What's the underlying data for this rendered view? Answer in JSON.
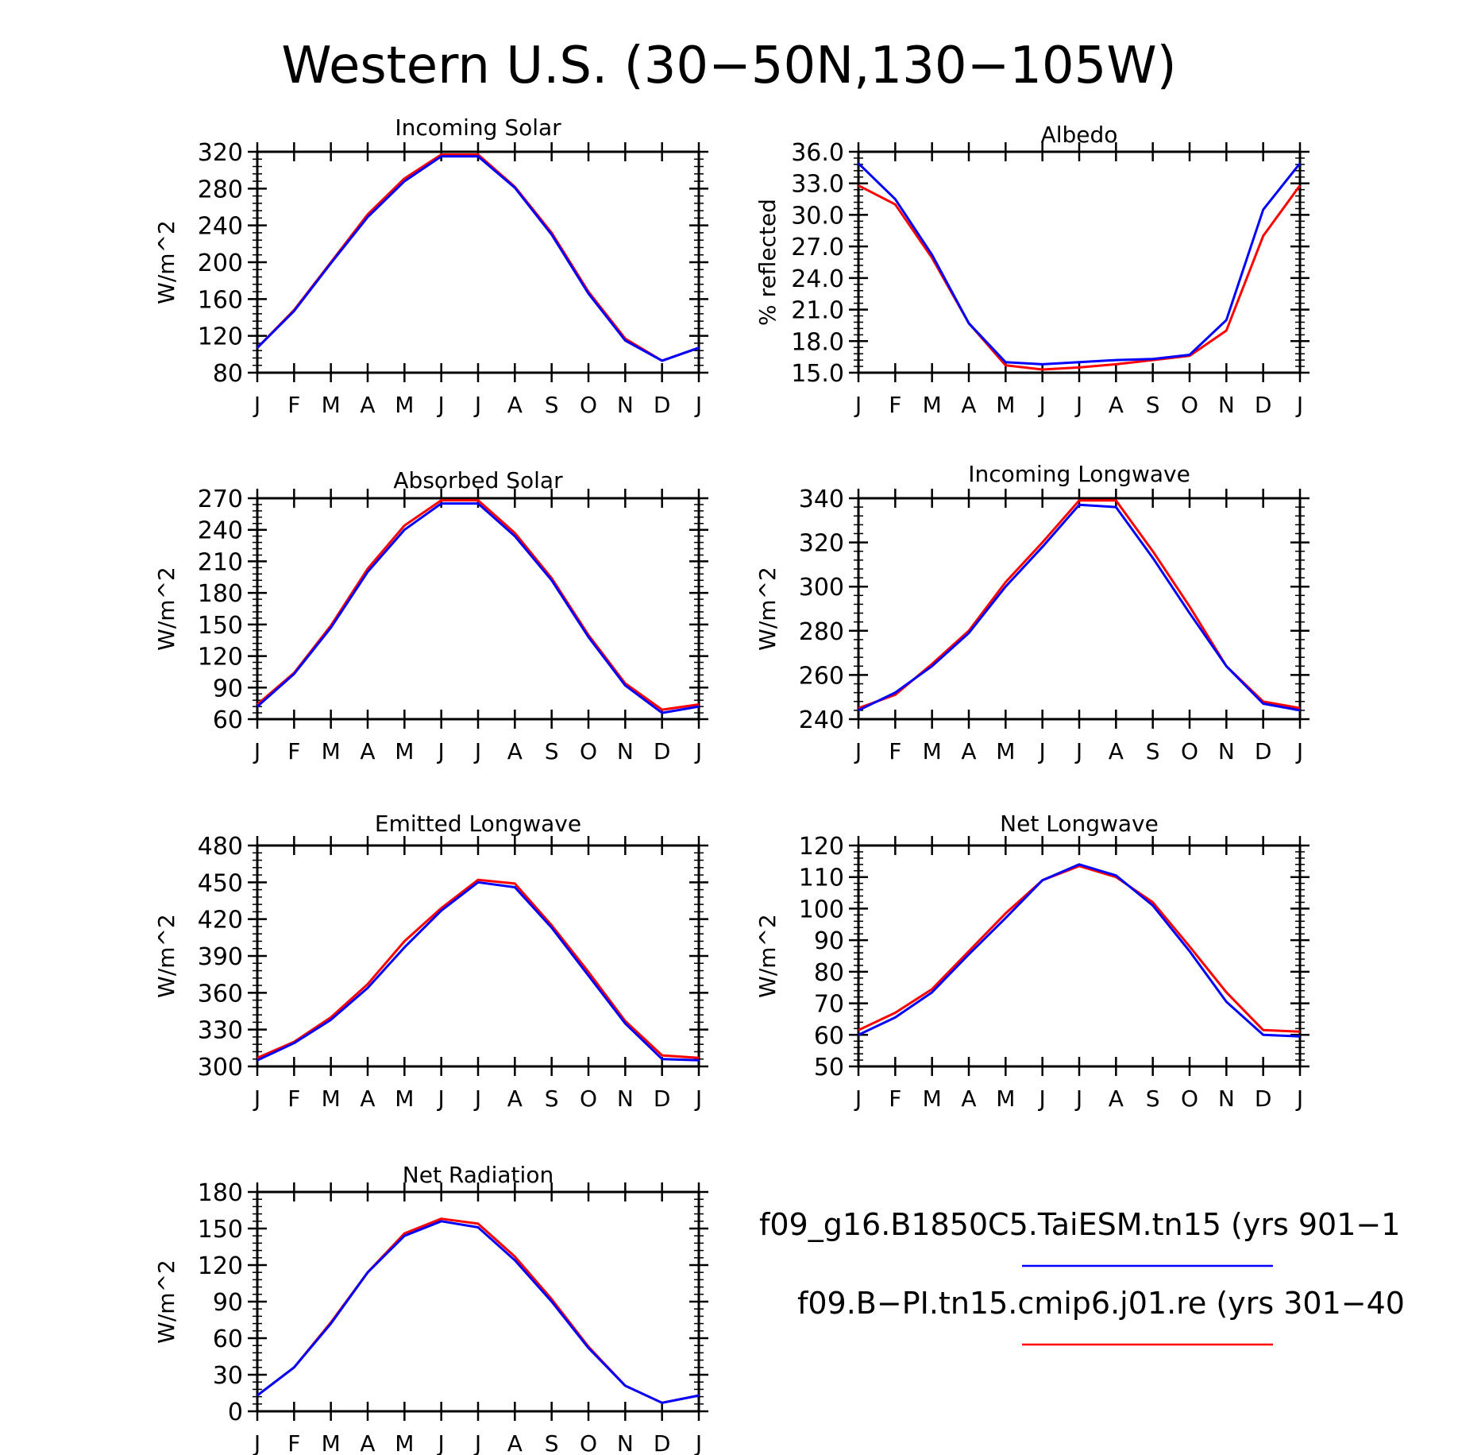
{
  "figure": {
    "title": "Western U.S. (30−50N,130−105W)"
  },
  "legend": [
    {
      "label": "f09_g16.B1850C5.TaiESM.tn15 (yrs 901−1",
      "color": "#0000ff"
    },
    {
      "label": "f09.B−PI.tn15.cmip6.j01.re (yrs 301−40",
      "color": "#ff0000"
    }
  ],
  "colors": {
    "series_blue": "#0000ff",
    "series_red": "#ff0000",
    "axis": "#000000"
  },
  "chart_data": [
    {
      "type": "line",
      "title": "Incoming Solar",
      "ylabel": "W/m^2",
      "categories": [
        "J",
        "F",
        "M",
        "A",
        "M",
        "J",
        "J",
        "A",
        "S",
        "O",
        "N",
        "D",
        "J"
      ],
      "ylim": [
        80,
        320
      ],
      "yticks": [
        "80",
        "120",
        "160",
        "200",
        "240",
        "280",
        "320"
      ],
      "series": [
        {
          "color": "#ff0000",
          "values": [
            107,
            148,
            200,
            252,
            291,
            317,
            317,
            282,
            232,
            168,
            117,
            93,
            107
          ]
        },
        {
          "color": "#0000ff",
          "values": [
            107,
            147,
            199,
            249,
            288,
            315,
            315,
            281,
            230,
            166,
            115,
            93,
            107
          ]
        }
      ]
    },
    {
      "type": "line",
      "title": "Albedo",
      "ylabel": "% reflected",
      "categories": [
        "J",
        "F",
        "M",
        "A",
        "M",
        "J",
        "J",
        "A",
        "S",
        "O",
        "N",
        "D",
        "J"
      ],
      "ylim": [
        15.0,
        36.0
      ],
      "yticks": [
        "15.0",
        "18.0",
        "21.0",
        "24.0",
        "27.0",
        "30.0",
        "33.0",
        "36.0"
      ],
      "series": [
        {
          "color": "#ff0000",
          "values": [
            32.8,
            31.0,
            25.9,
            19.7,
            15.7,
            15.3,
            15.5,
            15.8,
            16.2,
            16.6,
            19.0,
            28.0,
            32.8
          ]
        },
        {
          "color": "#0000ff",
          "values": [
            34.9,
            31.5,
            26.2,
            19.7,
            16.0,
            15.8,
            16.0,
            16.2,
            16.3,
            16.7,
            20.0,
            30.5,
            34.9
          ]
        }
      ]
    },
    {
      "type": "line",
      "title": "Absorbed Solar",
      "ylabel": "W/m^2",
      "categories": [
        "J",
        "F",
        "M",
        "A",
        "M",
        "J",
        "J",
        "A",
        "S",
        "O",
        "N",
        "D",
        "J"
      ],
      "ylim": [
        60,
        270
      ],
      "yticks": [
        "60",
        "90",
        "120",
        "150",
        "180",
        "210",
        "240",
        "270"
      ],
      "series": [
        {
          "color": "#ff0000",
          "values": [
            74,
            104,
            149,
            203,
            244,
            268,
            268,
            237,
            194,
            140,
            94,
            69,
            74
          ]
        },
        {
          "color": "#0000ff",
          "values": [
            72,
            103,
            147,
            200,
            240,
            265,
            265,
            234,
            192,
            138,
            92,
            66,
            72
          ]
        }
      ]
    },
    {
      "type": "line",
      "title": "Incoming Longwave",
      "ylabel": "W/m^2",
      "categories": [
        "J",
        "F",
        "M",
        "A",
        "M",
        "J",
        "J",
        "A",
        "S",
        "O",
        "N",
        "D",
        "J"
      ],
      "ylim": [
        240,
        340
      ],
      "yticks": [
        "240",
        "260",
        "280",
        "300",
        "320",
        "340"
      ],
      "series": [
        {
          "color": "#ff0000",
          "values": [
            245,
            251,
            265,
            280,
            302,
            320,
            339,
            339,
            316,
            291,
            264,
            248,
            245
          ]
        },
        {
          "color": "#0000ff",
          "values": [
            244,
            252,
            264,
            279,
            300,
            318,
            337,
            336,
            313,
            288,
            264,
            247,
            244
          ]
        }
      ]
    },
    {
      "type": "line",
      "title": "Emitted Longwave",
      "ylabel": "W/m^2",
      "categories": [
        "J",
        "F",
        "M",
        "A",
        "M",
        "J",
        "J",
        "A",
        "S",
        "O",
        "N",
        "D",
        "J"
      ],
      "ylim": [
        300,
        480
      ],
      "yticks": [
        "300",
        "330",
        "360",
        "390",
        "420",
        "450",
        "480"
      ],
      "series": [
        {
          "color": "#ff0000",
          "values": [
            307,
            320,
            340,
            367,
            402,
            429,
            452,
            449,
            415,
            377,
            337,
            309,
            307
          ]
        },
        {
          "color": "#0000ff",
          "values": [
            305,
            319,
            338,
            364,
            397,
            427,
            450,
            446,
            413,
            374,
            335,
            306,
            305
          ]
        }
      ]
    },
    {
      "type": "line",
      "title": "Net Longwave",
      "ylabel": "W/m^2",
      "categories": [
        "J",
        "F",
        "M",
        "A",
        "M",
        "J",
        "J",
        "A",
        "S",
        "O",
        "N",
        "D",
        "J"
      ],
      "ylim": [
        50,
        120
      ],
      "yticks": [
        "50",
        "60",
        "70",
        "80",
        "90",
        "100",
        "110",
        "120"
      ],
      "series": [
        {
          "color": "#ff0000",
          "values": [
            61.5,
            67,
            74.5,
            86.5,
            98.5,
            109,
            113.5,
            110,
            102,
            88,
            73.5,
            61.5,
            61
          ]
        },
        {
          "color": "#0000ff",
          "values": [
            60,
            65.5,
            73.5,
            85.5,
            97,
            109,
            114,
            110.5,
            101,
            86.5,
            70.5,
            60,
            59.5
          ]
        }
      ]
    },
    {
      "type": "line",
      "title": "Net Radiation",
      "ylabel": "W/m^2",
      "categories": [
        "J",
        "F",
        "M",
        "A",
        "M",
        "J",
        "J",
        "A",
        "S",
        "O",
        "N",
        "D",
        "J"
      ],
      "ylim": [
        0,
        180
      ],
      "yticks": [
        "0",
        "30",
        "60",
        "90",
        "120",
        "150",
        "180"
      ],
      "series": [
        {
          "color": "#ff0000",
          "values": [
            13,
            36,
            73,
            114,
            146,
            158,
            154,
            127,
            92,
            53,
            21,
            7,
            13
          ]
        },
        {
          "color": "#0000ff",
          "values": [
            13,
            36,
            72,
            114,
            144,
            156,
            151,
            124,
            90,
            52,
            21,
            7,
            13
          ]
        }
      ]
    }
  ]
}
